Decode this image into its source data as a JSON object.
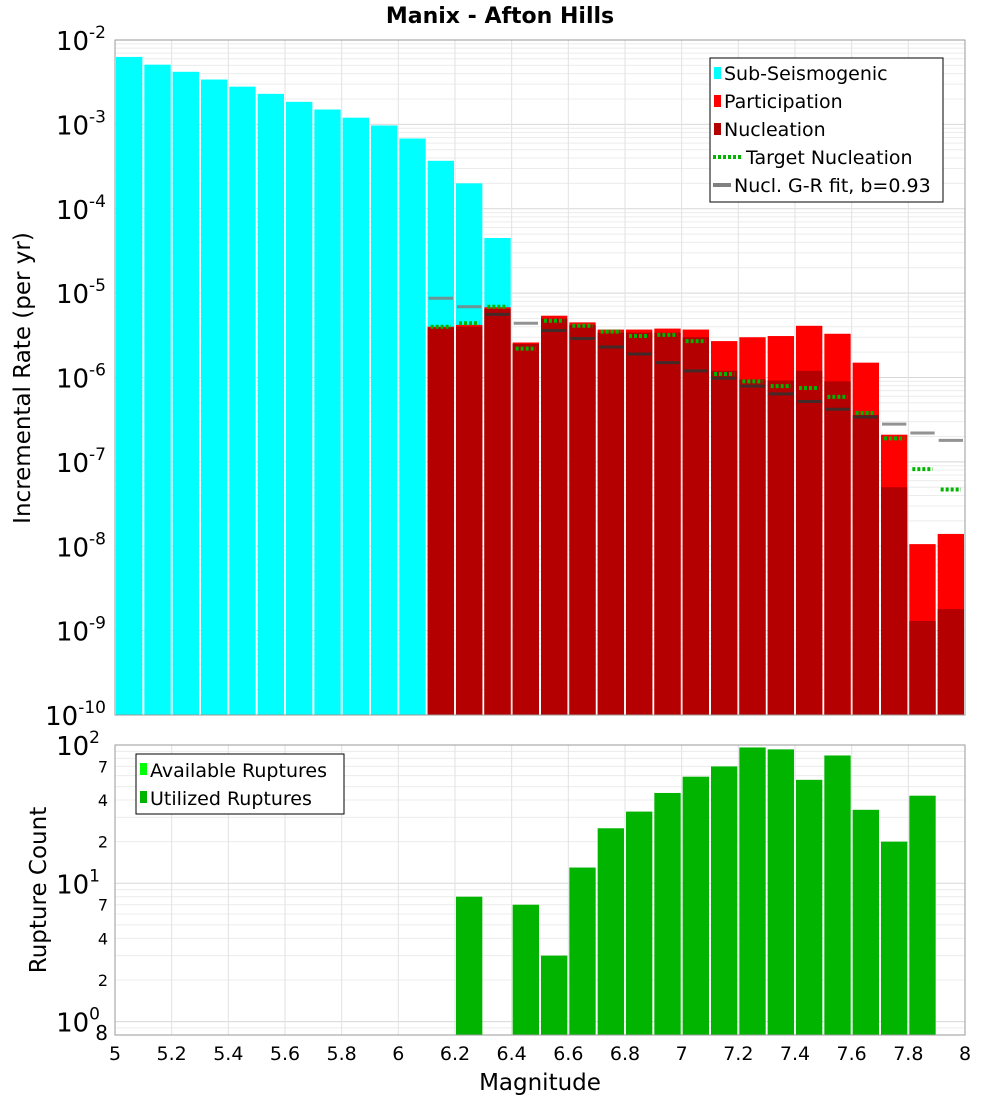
{
  "chart_data": [
    {
      "type": "bar",
      "title": "Manix - Afton Hills",
      "xlabel": "",
      "ylabel": "Incremental Rate (per yr)",
      "yscale": "log",
      "ylim": [
        1e-10,
        0.01
      ],
      "xlim": [
        5,
        8
      ],
      "bin_width": 0.1,
      "grid": true,
      "y_ticks": [
        {
          "exp": "-10"
        },
        {
          "exp": "-9"
        },
        {
          "exp": "-8"
        },
        {
          "exp": "-7"
        },
        {
          "exp": "-6"
        },
        {
          "exp": "-5"
        },
        {
          "exp": "-4"
        },
        {
          "exp": "-3"
        },
        {
          "exp": "-2"
        }
      ],
      "y_tick_base": "10",
      "legend": {
        "position": "top-right",
        "entries": [
          {
            "label": "Sub-Seismogenic",
            "color": "#00ffff",
            "kind": "square"
          },
          {
            "label": "Participation",
            "color": "#ff0000",
            "kind": "square"
          },
          {
            "label": "Nucleation",
            "color": "#b40000",
            "kind": "square"
          },
          {
            "label": "Target Nucleation",
            "color": "#00b400",
            "kind": "dotted"
          },
          {
            "label": "Nucl. G-R fit, b=0.93",
            "color": "#808080",
            "kind": "line"
          }
        ]
      },
      "colors": {
        "sub_seismogenic": "#00ffff",
        "participation": "#ff0000",
        "nucleation": "#b40000",
        "target": "#00b400",
        "gr_fit": "#808080"
      },
      "series": [
        {
          "name": "Sub-Seismogenic",
          "points": [
            {
              "x": 5.05,
              "y": 0.0063
            },
            {
              "x": 5.15,
              "y": 0.0051
            },
            {
              "x": 5.25,
              "y": 0.0042
            },
            {
              "x": 5.35,
              "y": 0.0034
            },
            {
              "x": 5.45,
              "y": 0.0028
            },
            {
              "x": 5.55,
              "y": 0.0023
            },
            {
              "x": 5.65,
              "y": 0.00185
            },
            {
              "x": 5.75,
              "y": 0.0015
            },
            {
              "x": 5.85,
              "y": 0.0012
            },
            {
              "x": 5.95,
              "y": 0.00097
            },
            {
              "x": 6.05,
              "y": 0.00068
            },
            {
              "x": 6.15,
              "y": 0.00037
            },
            {
              "x": 6.25,
              "y": 0.0002
            },
            {
              "x": 6.35,
              "y": 4.5e-05
            }
          ]
        },
        {
          "name": "Participation",
          "points": [
            {
              "x": 6.15,
              "y": 4e-06
            },
            {
              "x": 6.25,
              "y": 4.2e-06
            },
            {
              "x": 6.35,
              "y": 6.8e-06
            },
            {
              "x": 6.45,
              "y": 2.6e-06
            },
            {
              "x": 6.55,
              "y": 5.4e-06
            },
            {
              "x": 6.65,
              "y": 4.5e-06
            },
            {
              "x": 6.75,
              "y": 3.7e-06
            },
            {
              "x": 6.85,
              "y": 3.7e-06
            },
            {
              "x": 6.95,
              "y": 3.8e-06
            },
            {
              "x": 7.05,
              "y": 3.7e-06
            },
            {
              "x": 7.15,
              "y": 2.7e-06
            },
            {
              "x": 7.25,
              "y": 3e-06
            },
            {
              "x": 7.35,
              "y": 3.1e-06
            },
            {
              "x": 7.45,
              "y": 4.1e-06
            },
            {
              "x": 7.55,
              "y": 3.3e-06
            },
            {
              "x": 7.65,
              "y": 1.5e-06
            },
            {
              "x": 7.75,
              "y": 2.1e-07
            },
            {
              "x": 7.85,
              "y": 1.06e-08
            },
            {
              "x": 7.95,
              "y": 1.4e-08
            }
          ]
        },
        {
          "name": "Nucleation",
          "points": [
            {
              "x": 6.15,
              "y": 3.9e-06
            },
            {
              "x": 6.25,
              "y": 4e-06
            },
            {
              "x": 6.35,
              "y": 6.5e-06
            },
            {
              "x": 6.45,
              "y": 2.5e-06
            },
            {
              "x": 6.55,
              "y": 5e-06
            },
            {
              "x": 6.65,
              "y": 4.2e-06
            },
            {
              "x": 6.75,
              "y": 3.4e-06
            },
            {
              "x": 6.85,
              "y": 3.4e-06
            },
            {
              "x": 6.95,
              "y": 3.4e-06
            },
            {
              "x": 7.05,
              "y": 3e-06
            },
            {
              "x": 7.15,
              "y": 1.2e-06
            },
            {
              "x": 7.25,
              "y": 9.5e-07
            },
            {
              "x": 7.35,
              "y": 9.2e-07
            },
            {
              "x": 7.45,
              "y": 1.2e-06
            },
            {
              "x": 7.55,
              "y": 9e-07
            },
            {
              "x": 7.65,
              "y": 3.6e-07
            },
            {
              "x": 7.75,
              "y": 5e-08
            },
            {
              "x": 7.85,
              "y": 1.3e-09
            },
            {
              "x": 7.95,
              "y": 1.8e-09
            }
          ]
        },
        {
          "name": "Target Nucleation",
          "points": [
            {
              "x": 6.15,
              "y": 4e-06
            },
            {
              "x": 6.25,
              "y": 4.4e-06
            },
            {
              "x": 6.35,
              "y": 6.9e-06
            },
            {
              "x": 6.45,
              "y": 2.2e-06
            },
            {
              "x": 6.55,
              "y": 4.7e-06
            },
            {
              "x": 6.65,
              "y": 4.1e-06
            },
            {
              "x": 6.75,
              "y": 3.5e-06
            },
            {
              "x": 6.85,
              "y": 3.1e-06
            },
            {
              "x": 6.95,
              "y": 3.2e-06
            },
            {
              "x": 7.05,
              "y": 2.7e-06
            },
            {
              "x": 7.15,
              "y": 1.1e-06
            },
            {
              "x": 7.25,
              "y": 9e-07
            },
            {
              "x": 7.35,
              "y": 7.9e-07
            },
            {
              "x": 7.45,
              "y": 7.5e-07
            },
            {
              "x": 7.55,
              "y": 5.9e-07
            },
            {
              "x": 7.65,
              "y": 3.8e-07
            },
            {
              "x": 7.75,
              "y": 1.9e-07
            },
            {
              "x": 7.85,
              "y": 8.2e-08
            },
            {
              "x": 7.95,
              "y": 4.7e-08
            }
          ]
        },
        {
          "name": "Nucl. G-R fit, b=0.93",
          "points": [
            {
              "x": 6.15,
              "y": 8.7e-06
            },
            {
              "x": 6.25,
              "y": 6.9e-06
            },
            {
              "x": 6.35,
              "y": 5.6e-06
            },
            {
              "x": 6.45,
              "y": 4.4e-06
            },
            {
              "x": 6.55,
              "y": 3.6e-06
            },
            {
              "x": 6.65,
              "y": 2.9e-06
            },
            {
              "x": 6.75,
              "y": 2.3e-06
            },
            {
              "x": 6.85,
              "y": 1.9e-06
            },
            {
              "x": 6.95,
              "y": 1.5e-06
            },
            {
              "x": 7.05,
              "y": 1.2e-06
            },
            {
              "x": 7.15,
              "y": 9.8e-07
            },
            {
              "x": 7.25,
              "y": 7.9e-07
            },
            {
              "x": 7.35,
              "y": 6.4e-07
            },
            {
              "x": 7.45,
              "y": 5.2e-07
            },
            {
              "x": 7.55,
              "y": 4.2e-07
            },
            {
              "x": 7.65,
              "y": 3.4e-07
            },
            {
              "x": 7.75,
              "y": 2.8e-07
            },
            {
              "x": 7.85,
              "y": 2.2e-07
            },
            {
              "x": 7.95,
              "y": 1.8e-07
            }
          ]
        }
      ]
    },
    {
      "type": "bar",
      "title": "",
      "xlabel": "Magnitude",
      "ylabel": "Rupture Count",
      "yscale": "log",
      "ylim": [
        0.8,
        100
      ],
      "xlim": [
        5,
        8
      ],
      "bin_width": 0.1,
      "grid": true,
      "x_ticks": [
        "5",
        "5.2",
        "5.4",
        "5.6",
        "5.8",
        "6",
        "6.2",
        "6.4",
        "6.6",
        "6.8",
        "7",
        "7.2",
        "7.4",
        "7.6",
        "7.8",
        "8"
      ],
      "y_major_ticks": [
        {
          "value": 1,
          "base": "10",
          "exp": "0"
        },
        {
          "value": 10,
          "base": "10",
          "exp": "1"
        },
        {
          "value": 100,
          "base": "10",
          "exp": "2"
        }
      ],
      "y_minor_ticks": [
        {
          "value": 2,
          "label": "2"
        },
        {
          "value": 4,
          "label": "4"
        },
        {
          "value": 7,
          "label": "7"
        },
        {
          "value": 20,
          "label": "2"
        },
        {
          "value": 40,
          "label": "4"
        },
        {
          "value": 70,
          "label": "7"
        }
      ],
      "y_bottom_label": "8",
      "legend": {
        "position": "top-left",
        "entries": [
          {
            "label": "Available Ruptures",
            "color": "#00ff00",
            "kind": "square"
          },
          {
            "label": "Utilized Ruptures",
            "color": "#00b400",
            "kind": "square"
          }
        ]
      },
      "colors": {
        "available": "#00ff00",
        "utilized": "#00b400"
      },
      "series": [
        {
          "name": "Utilized Ruptures",
          "points": [
            {
              "x": 6.25,
              "y": 8
            },
            {
              "x": 6.45,
              "y": 7
            },
            {
              "x": 6.55,
              "y": 3
            },
            {
              "x": 6.65,
              "y": 13
            },
            {
              "x": 6.75,
              "y": 25
            },
            {
              "x": 6.85,
              "y": 33
            },
            {
              "x": 6.95,
              "y": 45
            },
            {
              "x": 7.05,
              "y": 59
            },
            {
              "x": 7.15,
              "y": 70
            },
            {
              "x": 7.25,
              "y": 96
            },
            {
              "x": 7.35,
              "y": 93
            },
            {
              "x": 7.45,
              "y": 56
            },
            {
              "x": 7.55,
              "y": 84
            },
            {
              "x": 7.65,
              "y": 34
            },
            {
              "x": 7.75,
              "y": 20
            },
            {
              "x": 7.85,
              "y": 43
            }
          ]
        }
      ]
    }
  ]
}
